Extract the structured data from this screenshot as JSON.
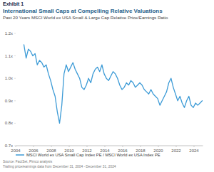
{
  "chart_data": {
    "type": "line",
    "title": "International Small Caps at Compelling Relative Valuations",
    "subtitle": "Past 20 Years MSCI World ex USA Small & Large Cap Relative Price/Earnings Ratio",
    "annotations": [
      "Exhibit 1",
      "Source: FactSet, Pimco analysis",
      "Trailing price/earnings data from December 31, 2004 - December 31, 2024"
    ],
    "x": [
      2004.92,
      2005.17,
      2005.42,
      2005.67,
      2005.92,
      2006.17,
      2006.42,
      2006.67,
      2006.92,
      2007.17,
      2007.42,
      2007.67,
      2007.92,
      2008.17,
      2008.42,
      2008.67,
      2008.92,
      2009.17,
      2009.42,
      2009.67,
      2009.92,
      2010.17,
      2010.42,
      2010.67,
      2010.92,
      2011.17,
      2011.42,
      2011.67,
      2011.92,
      2012.17,
      2012.42,
      2012.67,
      2012.92,
      2013.17,
      2013.42,
      2013.67,
      2013.92,
      2014.17,
      2014.42,
      2014.67,
      2014.92,
      2015.17,
      2015.42,
      2015.67,
      2015.92,
      2016.17,
      2016.42,
      2016.67,
      2016.92,
      2017.17,
      2017.42,
      2017.67,
      2017.92,
      2018.17,
      2018.42,
      2018.67,
      2018.92,
      2019.17,
      2019.42,
      2019.67,
      2019.92,
      2020.17,
      2020.42,
      2020.67,
      2020.92,
      2021.17,
      2021.42,
      2021.67,
      2021.92,
      2022.17,
      2022.42,
      2022.67,
      2022.92,
      2023.17,
      2023.42,
      2023.67,
      2023.92,
      2024.17,
      2024.42,
      2024.67,
      2024.92
    ],
    "series": [
      {
        "name": "MSCI World ex USA Small Cap Index PE / MSCI World ex USA Index PE",
        "color": "#3d9bd6",
        "values": [
          1.15,
          1.09,
          1.13,
          1.12,
          1.1,
          1.11,
          1.06,
          1.08,
          1.07,
          1.05,
          1.06,
          1.02,
          0.99,
          0.95,
          0.92,
          0.85,
          0.8,
          0.88,
          1.02,
          1.06,
          1.03,
          1.05,
          1.07,
          1.04,
          1.02,
          1.0,
          0.96,
          0.95,
          0.97,
          1.0,
          0.98,
          1.02,
          1.04,
          1.05,
          1.03,
          1.06,
          1.02,
          1.0,
          0.99,
          1.01,
          1.03,
          1.02,
          1.0,
          0.97,
          0.95,
          0.96,
          0.98,
          0.97,
          0.99,
          0.98,
          0.96,
          0.97,
          0.98,
          0.97,
          0.95,
          0.94,
          0.93,
          0.95,
          0.93,
          0.92,
          0.91,
          0.88,
          0.9,
          0.92,
          0.94,
          0.98,
          1.0,
          0.96,
          0.93,
          0.9,
          0.92,
          0.89,
          0.87,
          0.9,
          0.92,
          0.88,
          0.87,
          0.89,
          0.88,
          0.89,
          0.9
        ]
      }
    ],
    "xlim": [
      2004,
      2025
    ],
    "xticks": [
      2004,
      2006,
      2008,
      2010,
      2012,
      2014,
      2016,
      2018,
      2020,
      2022,
      2024
    ],
    "ylim": [
      0.7,
      1.2
    ],
    "yticks": [
      {
        "value": 0.7,
        "label": "0.7x"
      },
      {
        "value": 0.8,
        "label": "0.8x"
      },
      {
        "value": 0.9,
        "label": "0.9x"
      },
      {
        "value": 1.0,
        "label": "1.0x"
      },
      {
        "value": 1.1,
        "label": "1.1x"
      },
      {
        "value": 1.2,
        "label": "1.2x"
      }
    ],
    "grid": false,
    "legend": "bottom-left"
  }
}
